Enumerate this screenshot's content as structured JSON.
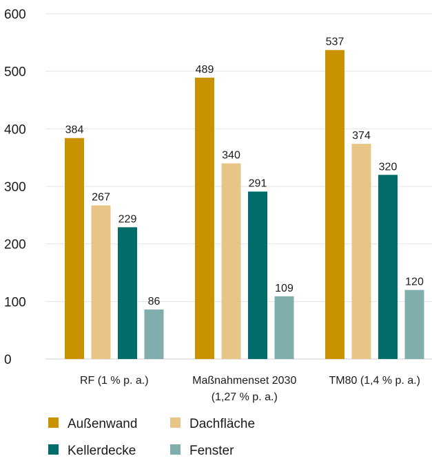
{
  "chart_data": {
    "type": "bar",
    "title": "",
    "xlabel": "",
    "ylabel": "",
    "ylim": [
      0,
      600
    ],
    "yticks": [
      0,
      100,
      200,
      300,
      400,
      500,
      600
    ],
    "grid": true,
    "legend_position": "bottom",
    "categories": [
      [
        "RF (1 % p. a.)"
      ],
      [
        "Maßnahmenset 2030",
        "(1,27 % p. a.)"
      ],
      [
        "TM80 (1,4 % p. a.)"
      ]
    ],
    "series": [
      {
        "name": "Außenwand",
        "color": "#c89200",
        "values": [
          384,
          489,
          537
        ]
      },
      {
        "name": "Dachfläche",
        "color": "#e8c487",
        "values": [
          267,
          340,
          374
        ]
      },
      {
        "name": "Kellerdecke",
        "color": "#006d6a",
        "values": [
          229,
          291,
          320
        ]
      },
      {
        "name": "Fenster",
        "color": "#7faead",
        "values": [
          86,
          109,
          120
        ]
      }
    ]
  }
}
